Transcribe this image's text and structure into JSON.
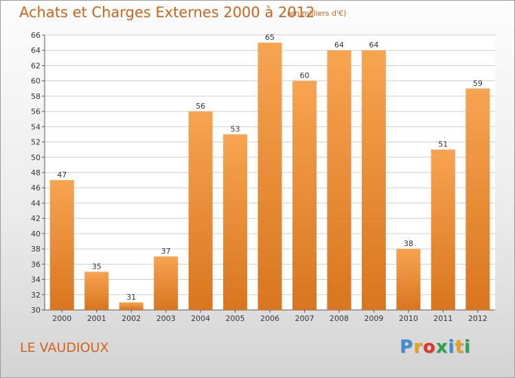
{
  "chart_data": {
    "type": "bar",
    "title": "Achats et Charges Externes 2000 à 2012",
    "subtitle": "(en milliers d'€)",
    "categories": [
      "2000",
      "2001",
      "2002",
      "2003",
      "2004",
      "2005",
      "2006",
      "2007",
      "2008",
      "2009",
      "2010",
      "2011",
      "2012"
    ],
    "values": [
      47,
      35,
      31,
      37,
      56,
      53,
      65,
      60,
      64,
      64,
      38,
      51,
      59
    ],
    "ylim": [
      30,
      66
    ],
    "yticks": [
      30,
      32,
      34,
      36,
      38,
      40,
      42,
      44,
      46,
      48,
      50,
      52,
      54,
      56,
      58,
      60,
      62,
      64,
      66
    ],
    "grid": true,
    "xlabel": "",
    "ylabel": ""
  },
  "commune": "LE VAUDIOUX",
  "brand": {
    "letters": [
      "P",
      "r",
      "o",
      "x",
      "i",
      "t",
      "i"
    ],
    "colors": [
      "#3a8fd8",
      "#e8a11a",
      "#e2322b",
      "#2aa34a",
      "#3a8fd8",
      "#e8a11a",
      "#2aa34a"
    ]
  },
  "colors": {
    "bar_top": "#f7a451",
    "bar_bottom": "#d9761f",
    "title": "#d06418",
    "grid": "#cfcfcf"
  }
}
